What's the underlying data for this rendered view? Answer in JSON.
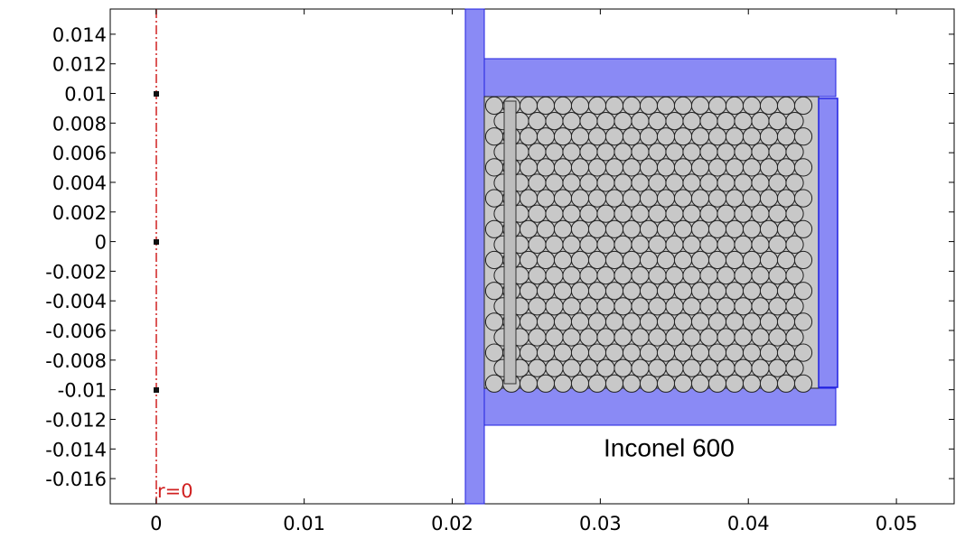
{
  "chart_data": {
    "type": "geometry",
    "annotations": [
      "r=0",
      "Inconel 600"
    ],
    "xlim": [
      -0.0031,
      0.0539
    ],
    "ylim": [
      -0.0177,
      0.0157
    ],
    "xticks": [
      0,
      0.01,
      0.02,
      0.03,
      0.04,
      0.05
    ],
    "yticks": [
      0.014,
      0.012,
      0.01,
      0.008,
      0.006,
      0.004,
      0.002,
      0,
      -0.002,
      -0.004,
      -0.006,
      -0.008,
      -0.01,
      -0.012,
      -0.014,
      -0.016
    ]
  }
}
